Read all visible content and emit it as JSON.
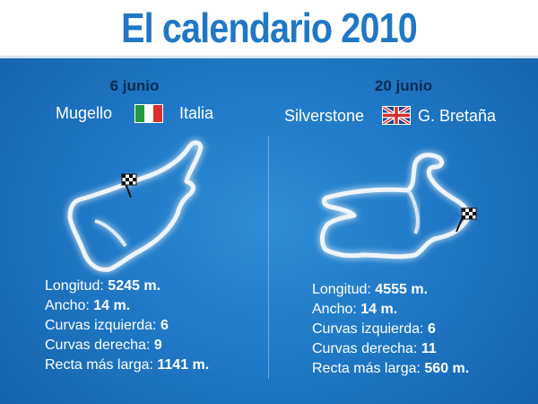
{
  "title": "El calendario 2010",
  "colors": {
    "background": "#1f78c6",
    "title": "#1f78c6",
    "date": "#0d2b4d"
  },
  "races": [
    {
      "date": "6 junio",
      "circuit": "Mugello",
      "country": "Italia",
      "flag_icon": "italy-flag-icon",
      "stats": [
        {
          "label": "Longitud:",
          "value": "5245 m."
        },
        {
          "label": "Ancho:",
          "value": "14 m."
        },
        {
          "label": "Curvas izquierda:",
          "value": "6"
        },
        {
          "label": "Curvas derecha:",
          "value": "9"
        },
        {
          "label": "Recta más larga:",
          "value": "1141 m."
        }
      ]
    },
    {
      "date": "20 junio",
      "circuit": "Silverstone",
      "country": "G. Bretaña",
      "flag_icon": "united-kingdom-flag-icon",
      "stats": [
        {
          "label": "Longitud:",
          "value": "4555 m."
        },
        {
          "label": "Ancho:",
          "value": "14 m."
        },
        {
          "label": "Curvas izquierda:",
          "value": "6"
        },
        {
          "label": "Curvas derecha:",
          "value": "11"
        },
        {
          "label": "Recta más larga:",
          "value": "560 m."
        }
      ]
    }
  ]
}
